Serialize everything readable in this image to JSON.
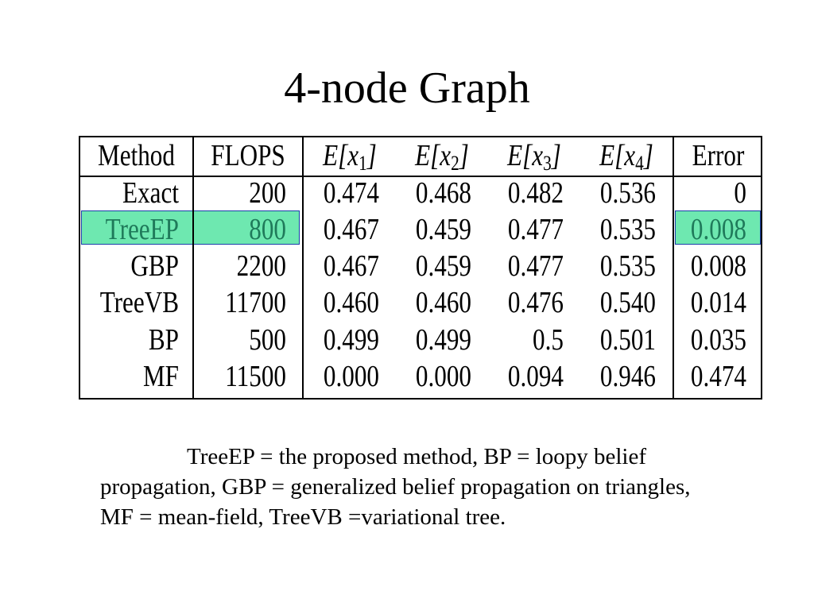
{
  "title": "4-node Graph",
  "table": {
    "headers": {
      "method": "Method",
      "flops": "FLOPS",
      "e1": {
        "prefix": "E[x",
        "sub": "1",
        "suffix": "]"
      },
      "e2": {
        "prefix": "E[x",
        "sub": "2",
        "suffix": "]"
      },
      "e3": {
        "prefix": "E[x",
        "sub": "3",
        "suffix": "]"
      },
      "e4": {
        "prefix": "E[x",
        "sub": "4",
        "suffix": "]"
      },
      "error": "Error"
    },
    "rows": [
      {
        "method": "Exact",
        "flops": "200",
        "e1": "0.474",
        "e2": "0.468",
        "e3": "0.482",
        "e4": "0.536",
        "error": "0"
      },
      {
        "method": "TreeEP",
        "flops": "800",
        "e1": "0.467",
        "e2": "0.459",
        "e3": "0.477",
        "e4": "0.535",
        "error": "0.008"
      },
      {
        "method": "GBP",
        "flops": "2200",
        "e1": "0.467",
        "e2": "0.459",
        "e3": "0.477",
        "e4": "0.535",
        "error": "0.008"
      },
      {
        "method": "TreeVB",
        "flops": "11700",
        "e1": "0.460",
        "e2": "0.460",
        "e3": "0.476",
        "e4": "0.540",
        "error": "0.014"
      },
      {
        "method": "BP",
        "flops": "500",
        "e1": "0.499",
        "e2": "0.499",
        "e3": "0.5",
        "e4": "0.501",
        "error": "0.035"
      },
      {
        "method": "MF",
        "flops": "11500",
        "e1": "0.000",
        "e2": "0.000",
        "e3": "0.094",
        "e4": "0.946",
        "error": "0.474"
      }
    ],
    "highlight_color": "#6ee8b0",
    "highlight_border": "#1a3fa8",
    "highlight_text_color": "#1f7a5a"
  },
  "caption": "TreeEP = the proposed method, BP = loopy belief propagation, GBP = generalized belief propagation on triangles, MF = mean-field, TreeVB =variational tree."
}
